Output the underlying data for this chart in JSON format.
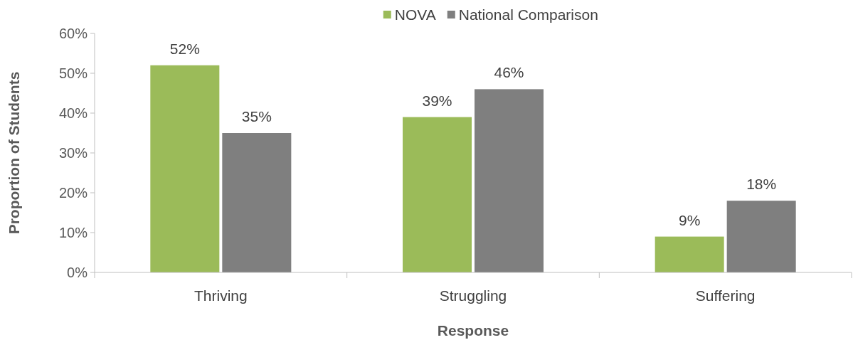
{
  "chart_data": {
    "type": "bar",
    "xlabel": "Response",
    "ylabel": "Proportion of Students",
    "categories": [
      "Thriving",
      "Struggling",
      "Suffering"
    ],
    "series": [
      {
        "name": "NOVA",
        "color": "#9bbb59",
        "values": [
          52,
          39,
          9
        ],
        "value_labels": [
          "52%",
          "39%",
          "9%"
        ]
      },
      {
        "name": "National Comparison",
        "color": "#7f7f7f",
        "values": [
          35,
          46,
          18
        ],
        "value_labels": [
          "35%",
          "46%",
          "18%"
        ]
      }
    ],
    "ylim": [
      0,
      60
    ],
    "yticks": [
      {
        "value": 0,
        "label": "0%"
      },
      {
        "value": 10,
        "label": "10%"
      },
      {
        "value": 20,
        "label": "20%"
      },
      {
        "value": 30,
        "label": "30%"
      },
      {
        "value": 40,
        "label": "40%"
      },
      {
        "value": 50,
        "label": "50%"
      },
      {
        "value": 60,
        "label": "60%"
      }
    ],
    "legend": "top",
    "grid": false
  }
}
